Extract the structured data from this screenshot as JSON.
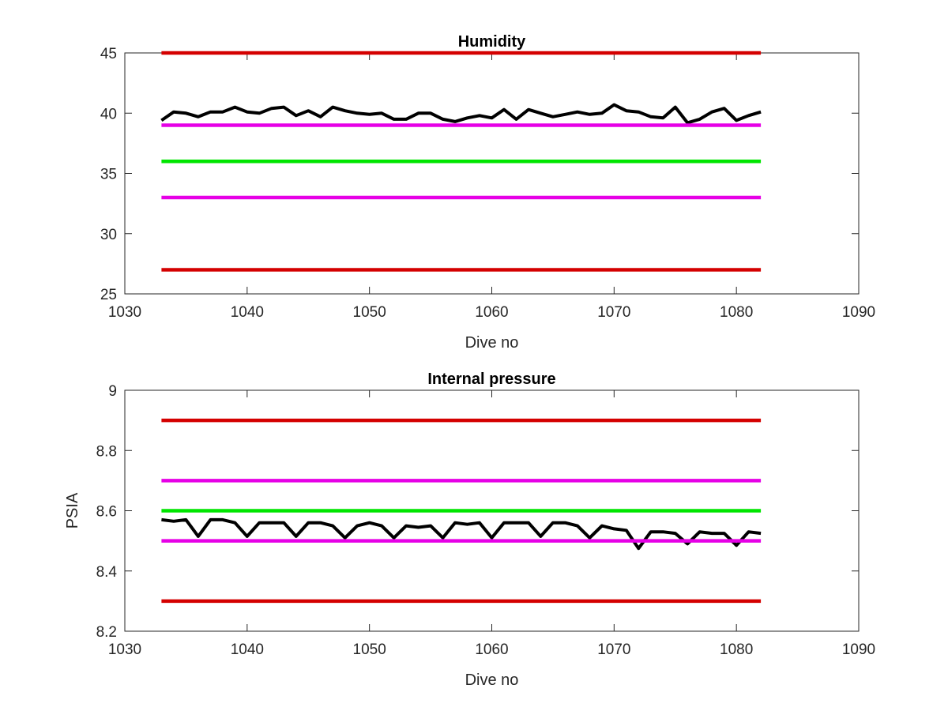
{
  "chart_data": [
    {
      "type": "line",
      "title": "Humidity",
      "xlabel": "Dive no",
      "ylabel": "",
      "xlim": [
        1030,
        1090
      ],
      "ylim": [
        25,
        45
      ],
      "xticks": [
        1030,
        1040,
        1050,
        1060,
        1070,
        1080,
        1090
      ],
      "yticks": [
        25,
        30,
        35,
        40,
        45
      ],
      "grid": false,
      "series": [
        {
          "color": "#000000",
          "x": [
            1033,
            1034,
            1035,
            1036,
            1037,
            1038,
            1039,
            1040,
            1041,
            1042,
            1043,
            1044,
            1045,
            1046,
            1047,
            1048,
            1049,
            1050,
            1051,
            1052,
            1053,
            1054,
            1055,
            1056,
            1057,
            1058,
            1059,
            1060,
            1061,
            1062,
            1063,
            1064,
            1065,
            1066,
            1067,
            1068,
            1069,
            1070,
            1071,
            1072,
            1073,
            1074,
            1075,
            1076,
            1077,
            1078,
            1079,
            1080,
            1081,
            1082
          ],
          "values": [
            39.4,
            40.1,
            40.0,
            39.7,
            40.1,
            40.1,
            40.5,
            40.1,
            40.0,
            40.4,
            40.5,
            39.8,
            40.2,
            39.7,
            40.5,
            40.2,
            40.0,
            39.9,
            40.0,
            39.5,
            39.5,
            40.0,
            40.0,
            39.5,
            39.3,
            39.6,
            39.8,
            39.6,
            40.3,
            39.5,
            40.3,
            40.0,
            39.7,
            39.9,
            40.1,
            39.9,
            40.0,
            40.7,
            40.2,
            40.1,
            39.7,
            39.6,
            40.5,
            39.2,
            39.5,
            40.1,
            40.4,
            39.4,
            39.8,
            40.1
          ]
        },
        {
          "color": "#d40000",
          "x": [
            1033,
            1082
          ],
          "values": [
            45,
            45
          ]
        },
        {
          "color": "#e600e6",
          "x": [
            1033,
            1082
          ],
          "values": [
            39,
            39
          ]
        },
        {
          "color": "#00e600",
          "x": [
            1033,
            1082
          ],
          "values": [
            36,
            36
          ]
        },
        {
          "color": "#e600e6",
          "x": [
            1033,
            1082
          ],
          "values": [
            33,
            33
          ]
        },
        {
          "color": "#d40000",
          "x": [
            1033,
            1082
          ],
          "values": [
            27,
            27
          ]
        }
      ]
    },
    {
      "type": "line",
      "title": "Internal pressure",
      "xlabel": "Dive no",
      "ylabel": "PSIA",
      "xlim": [
        1030,
        1090
      ],
      "ylim": [
        8.2,
        9
      ],
      "xticks": [
        1030,
        1040,
        1050,
        1060,
        1070,
        1080,
        1090
      ],
      "yticks": [
        8.2,
        8.4,
        8.6,
        8.8,
        9
      ],
      "grid": false,
      "series": [
        {
          "color": "#000000",
          "x": [
            1033,
            1034,
            1035,
            1036,
            1037,
            1038,
            1039,
            1040,
            1041,
            1042,
            1043,
            1044,
            1045,
            1046,
            1047,
            1048,
            1049,
            1050,
            1051,
            1052,
            1053,
            1054,
            1055,
            1056,
            1057,
            1058,
            1059,
            1060,
            1061,
            1062,
            1063,
            1064,
            1065,
            1066,
            1067,
            1068,
            1069,
            1070,
            1071,
            1072,
            1073,
            1074,
            1075,
            1076,
            1077,
            1078,
            1079,
            1080,
            1081,
            1082
          ],
          "values": [
            8.57,
            8.565,
            8.57,
            8.515,
            8.57,
            8.57,
            8.56,
            8.515,
            8.56,
            8.56,
            8.56,
            8.515,
            8.56,
            8.56,
            8.55,
            8.51,
            8.55,
            8.56,
            8.55,
            8.51,
            8.55,
            8.545,
            8.55,
            8.51,
            8.56,
            8.555,
            8.56,
            8.51,
            8.56,
            8.56,
            8.56,
            8.515,
            8.56,
            8.56,
            8.55,
            8.51,
            8.55,
            8.54,
            8.535,
            8.475,
            8.53,
            8.53,
            8.525,
            8.49,
            8.53,
            8.525,
            8.525,
            8.485,
            8.53,
            8.525
          ]
        },
        {
          "color": "#d40000",
          "x": [
            1033,
            1082
          ],
          "values": [
            8.9,
            8.9
          ]
        },
        {
          "color": "#e600e6",
          "x": [
            1033,
            1082
          ],
          "values": [
            8.7,
            8.7
          ]
        },
        {
          "color": "#00e600",
          "x": [
            1033,
            1082
          ],
          "values": [
            8.6,
            8.6
          ]
        },
        {
          "color": "#e600e6",
          "x": [
            1033,
            1082
          ],
          "values": [
            8.5,
            8.5
          ]
        },
        {
          "color": "#d40000",
          "x": [
            1033,
            1082
          ],
          "values": [
            8.3,
            8.3
          ]
        }
      ]
    }
  ]
}
